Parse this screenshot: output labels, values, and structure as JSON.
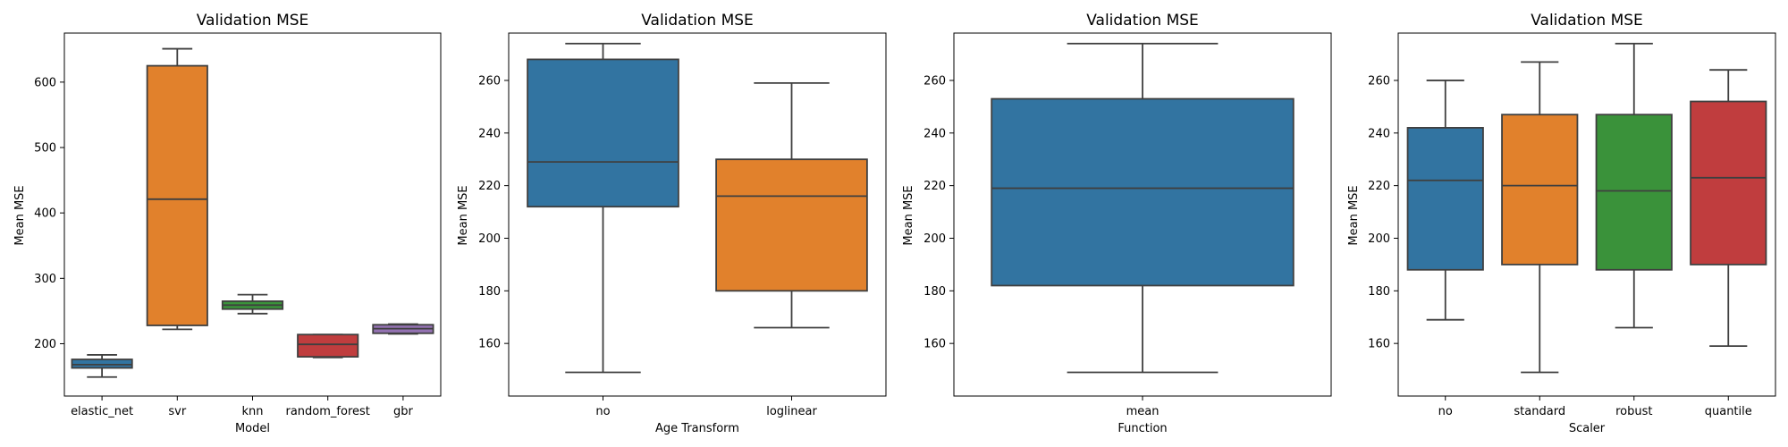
{
  "chart_data": [
    {
      "type": "box",
      "title": "Validation MSE",
      "xlabel": "Model",
      "ylabel": "Mean MSE",
      "ylim": [
        120,
        675
      ],
      "yticks": [
        200,
        300,
        400,
        500,
        600
      ],
      "categories": [
        "elastic_net",
        "svr",
        "knn",
        "random_forest",
        "gbr"
      ],
      "colors": [
        "#3274a1",
        "#e1812c",
        "#3a923a",
        "#c03d3e",
        "#9372b2"
      ],
      "boxes": [
        {
          "min": 149,
          "q1": 163,
          "median": 168,
          "q3": 176,
          "max": 183
        },
        {
          "min": 222,
          "q1": 228,
          "median": 421,
          "q3": 625,
          "max": 651
        },
        {
          "min": 246,
          "q1": 253,
          "median": 259,
          "q3": 265,
          "max": 275
        },
        {
          "min": 179,
          "q1": 180,
          "median": 199,
          "q3": 214,
          "max": 214
        },
        {
          "min": 215,
          "q1": 216,
          "median": 223,
          "q3": 229,
          "max": 230
        }
      ]
    },
    {
      "type": "box",
      "title": "Validation MSE",
      "xlabel": "Age Transform",
      "ylabel": "Mean MSE",
      "ylim": [
        140,
        278
      ],
      "yticks": [
        160,
        180,
        200,
        220,
        240,
        260
      ],
      "categories": [
        "no",
        "loglinear"
      ],
      "colors": [
        "#3274a1",
        "#e1812c"
      ],
      "boxes": [
        {
          "min": 149,
          "q1": 212,
          "median": 229,
          "q3": 268,
          "max": 274
        },
        {
          "min": 166,
          "q1": 180,
          "median": 216,
          "q3": 230,
          "max": 259
        }
      ]
    },
    {
      "type": "box",
      "title": "Validation MSE",
      "xlabel": "Function",
      "ylabel": "Mean MSE",
      "ylim": [
        140,
        278
      ],
      "yticks": [
        160,
        180,
        200,
        220,
        240,
        260
      ],
      "categories": [
        "mean"
      ],
      "colors": [
        "#3274a1"
      ],
      "boxes": [
        {
          "min": 149,
          "q1": 182,
          "median": 219,
          "q3": 253,
          "max": 274
        }
      ]
    },
    {
      "type": "box",
      "title": "Validation MSE",
      "xlabel": "Scaler",
      "ylabel": "Mean MSE",
      "ylim": [
        140,
        278
      ],
      "yticks": [
        160,
        180,
        200,
        220,
        240,
        260
      ],
      "categories": [
        "no",
        "standard",
        "robust",
        "quantile"
      ],
      "colors": [
        "#3274a1",
        "#e1812c",
        "#3a923a",
        "#c03d3e"
      ],
      "boxes": [
        {
          "min": 169,
          "q1": 188,
          "median": 222,
          "q3": 242,
          "max": 260
        },
        {
          "min": 149,
          "q1": 190,
          "median": 220,
          "q3": 247,
          "max": 267
        },
        {
          "min": 166,
          "q1": 188,
          "median": 218,
          "q3": 247,
          "max": 274
        },
        {
          "min": 159,
          "q1": 190,
          "median": 223,
          "q3": 252,
          "max": 264
        }
      ]
    }
  ]
}
